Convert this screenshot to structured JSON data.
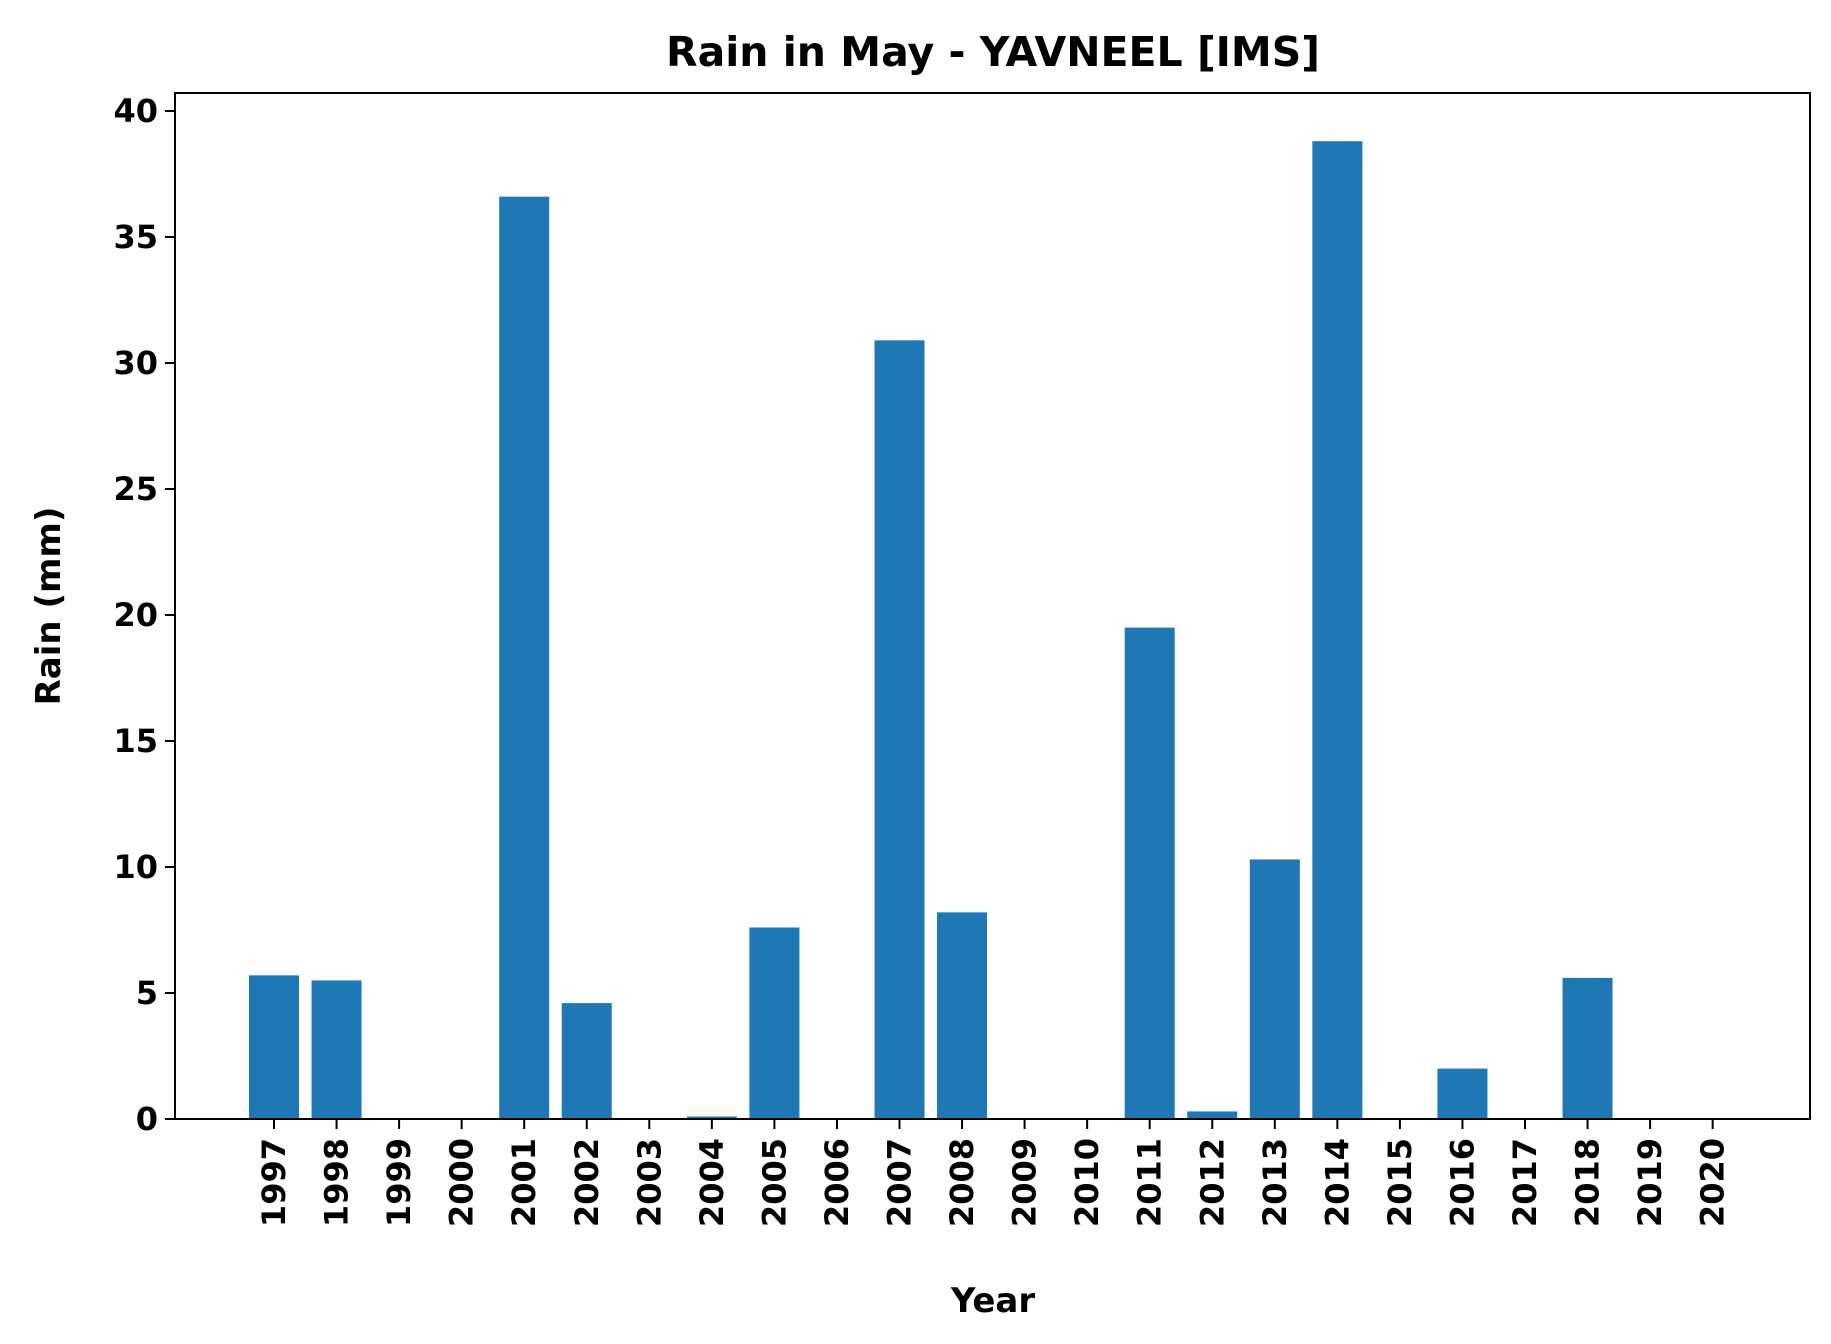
{
  "chart_data": {
    "type": "bar",
    "title": "Rain in May - YAVNEEL [IMS]",
    "xlabel": "Year",
    "ylabel": "Rain (mm)",
    "ylim": [
      0,
      40
    ],
    "yticks": [
      "0",
      "5",
      "10",
      "15",
      "20",
      "25",
      "30",
      "35",
      "40"
    ],
    "categories": [
      "1997",
      "1998",
      "1999",
      "2000",
      "2001",
      "2002",
      "2003",
      "2004",
      "2005",
      "2006",
      "2007",
      "2008",
      "2009",
      "2010",
      "2011",
      "2012",
      "2013",
      "2014",
      "2015",
      "2016",
      "2017",
      "2018",
      "2019",
      "2020"
    ],
    "values": [
      5.7,
      5.5,
      0,
      0,
      36.6,
      4.6,
      0,
      0.1,
      7.6,
      0,
      30.9,
      8.2,
      0,
      0,
      19.5,
      0.3,
      10.3,
      38.8,
      0,
      2.0,
      0,
      5.6,
      0,
      0
    ],
    "bar_color": "#1f77b4",
    "grid": false,
    "legend": "none"
  }
}
